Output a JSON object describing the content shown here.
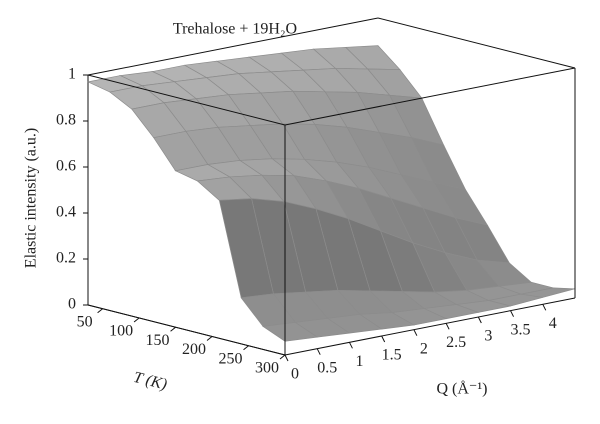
{
  "chart_data": {
    "type": "surface",
    "title": "Trehalose + 19H₂O",
    "z_label": "Elastic intensity (a.u.)",
    "y_label": "T (K)",
    "x_label": "Q (Å⁻¹)",
    "x": [
      0,
      0.5,
      1,
      1.5,
      2,
      2.5,
      3,
      3.5,
      4,
      4.5
    ],
    "y": [
      30,
      60,
      90,
      120,
      150,
      180,
      210,
      240,
      270,
      300
    ],
    "z": [
      [
        0.97,
        0.97,
        0.96,
        0.96,
        0.95,
        0.94,
        0.93,
        0.92,
        0.9,
        0.88
      ],
      [
        0.95,
        0.95,
        0.94,
        0.93,
        0.92,
        0.9,
        0.88,
        0.86,
        0.83,
        0.8
      ],
      [
        0.9,
        0.9,
        0.89,
        0.88,
        0.86,
        0.84,
        0.81,
        0.78,
        0.74,
        0.7
      ],
      [
        0.8,
        0.8,
        0.79,
        0.77,
        0.75,
        0.72,
        0.68,
        0.63,
        0.58,
        0.52
      ],
      [
        0.68,
        0.68,
        0.67,
        0.65,
        0.62,
        0.58,
        0.53,
        0.47,
        0.41,
        0.35
      ],
      [
        0.66,
        0.65,
        0.63,
        0.6,
        0.55,
        0.49,
        0.42,
        0.35,
        0.28,
        0.22
      ],
      [
        0.6,
        0.58,
        0.54,
        0.48,
        0.41,
        0.33,
        0.25,
        0.18,
        0.12,
        0.08
      ],
      [
        0.2,
        0.19,
        0.17,
        0.15,
        0.12,
        0.09,
        0.06,
        0.04,
        0.03,
        0.02
      ],
      [
        0.1,
        0.09,
        0.08,
        0.07,
        0.05,
        0.04,
        0.03,
        0.02,
        0.02,
        0.02
      ],
      [
        0.06,
        0.05,
        0.04,
        0.03,
        0.02,
        0.02,
        0.02,
        0.02,
        0.03,
        0.04
      ]
    ],
    "color": "#a8a8a8",
    "xlim": [
      0,
      4.5
    ],
    "ylim": [
      30,
      300
    ],
    "zlim": [
      0,
      1
    ],
    "xticks": [
      0,
      0.5,
      1,
      1.5,
      2,
      2.5,
      3,
      3.5,
      4
    ],
    "yticks": [
      50,
      100,
      150,
      200,
      250,
      300
    ],
    "zticks": [
      0,
      0.2,
      0.4,
      0.6,
      0.8,
      1
    ]
  }
}
